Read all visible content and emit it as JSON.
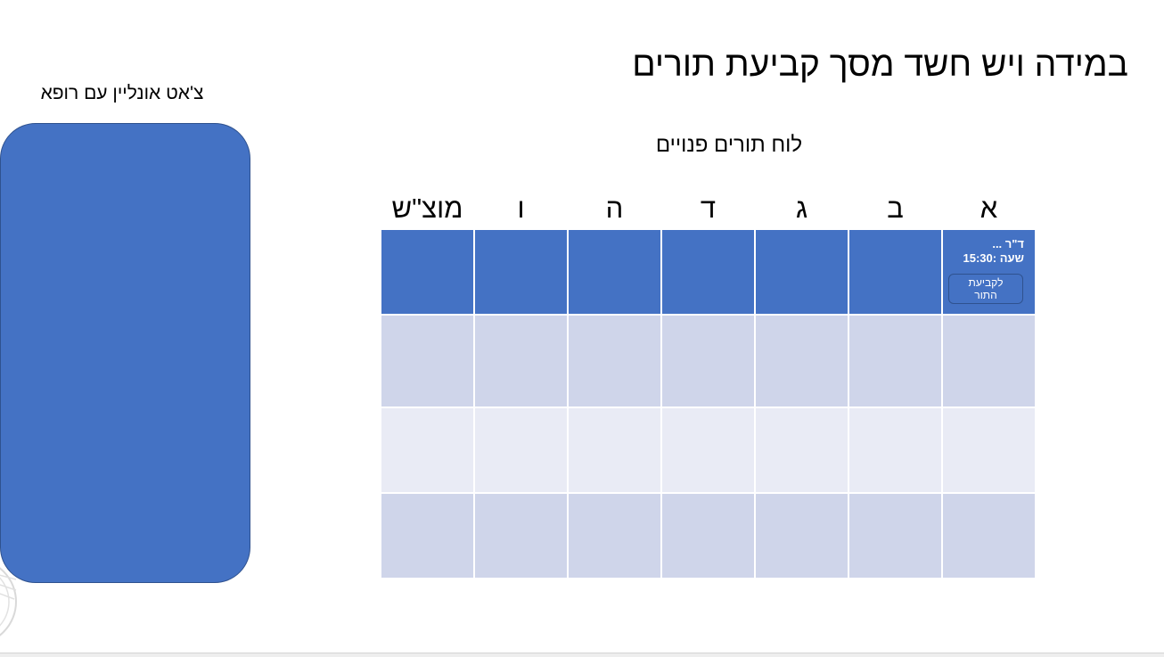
{
  "page": {
    "title": "במידה ויש חשד מסך קביעת תורים"
  },
  "chat": {
    "title": "צ'אט אונליין עם רופא"
  },
  "schedule": {
    "title": "לוח תורים פנויים",
    "days": [
      "א",
      "ב",
      "ג",
      "ד",
      "ה",
      "ו",
      "מוצ\"ש"
    ],
    "rows": 4,
    "appointment": {
      "doctor": "ד\"ר ...",
      "time_text": "שעה :15:30",
      "book_label": "לקביעת התור"
    }
  },
  "colors": {
    "accent": "#4472c4",
    "accent_border": "#2f528f",
    "row_dark": "#cfd5ea",
    "row_light": "#e9ebf5"
  },
  "icons": {
    "watermark": "logo-watermark-icon"
  }
}
